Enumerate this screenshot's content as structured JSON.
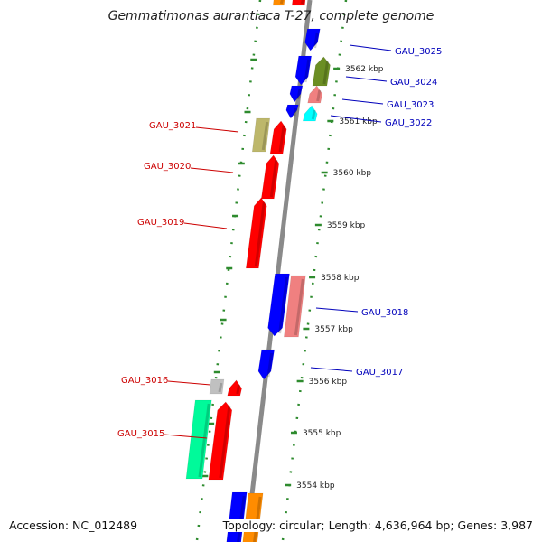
{
  "title": "Gemmatimonas aurantiaca T-27, complete genome",
  "accession_text": "Accession: NC_012489",
  "topology_text": "Topology: circular; Length: 4,636,964 bp; Genes: 3,987",
  "colors": {
    "backbone": "#8a8a8a",
    "track_dots": "#2e8b2e",
    "label_left": "#cc0000",
    "label_right": "#0000bb",
    "kbp_text": "#222222"
  },
  "kbp_ticks": [
    {
      "label": "3562 kbp"
    },
    {
      "label": "3561 kbp"
    },
    {
      "label": "3560 kbp"
    },
    {
      "label": "3559 kbp"
    },
    {
      "label": "3558 kbp"
    },
    {
      "label": "3557 kbp"
    },
    {
      "label": "3556 kbp"
    },
    {
      "label": "3555 kbp"
    },
    {
      "label": "3554 kbp"
    }
  ],
  "gene_labels": [
    {
      "name": "GAU_3025",
      "side": "right"
    },
    {
      "name": "GAU_3024",
      "side": "right"
    },
    {
      "name": "GAU_3023",
      "side": "right"
    },
    {
      "name": "GAU_3022",
      "side": "right"
    },
    {
      "name": "GAU_3021",
      "side": "left"
    },
    {
      "name": "GAU_3020",
      "side": "left"
    },
    {
      "name": "GAU_3019",
      "side": "left"
    },
    {
      "name": "GAU_3018",
      "side": "right"
    },
    {
      "name": "GAU_3017",
      "side": "right"
    },
    {
      "name": "GAU_3016",
      "side": "left"
    },
    {
      "name": "GAU_3015",
      "side": "left"
    }
  ],
  "genes": [
    {
      "color": "#ff8c00",
      "strand": "top"
    },
    {
      "color": "#ff0000",
      "strand": "top"
    },
    {
      "color": "#0000ff",
      "strand": "down"
    },
    {
      "color": "#0000ff",
      "strand": "down"
    },
    {
      "color": "#6b8e23",
      "strand": "up"
    },
    {
      "color": "#0000ff",
      "strand": "down"
    },
    {
      "color": "#f08080",
      "strand": "up"
    },
    {
      "color": "#0000ff",
      "strand": "down"
    },
    {
      "color": "#00ffff",
      "strand": "up"
    },
    {
      "color": "#bdb76b",
      "strand": "none"
    },
    {
      "color": "#ff0000",
      "strand": "up"
    },
    {
      "color": "#ff0000",
      "strand": "up"
    },
    {
      "color": "#ff0000",
      "strand": "up"
    },
    {
      "color": "#0000ff",
      "strand": "down"
    },
    {
      "color": "#f08080",
      "strand": "none"
    },
    {
      "color": "#0000ff",
      "strand": "down"
    },
    {
      "color": "#c0c0c0",
      "strand": "none"
    },
    {
      "color": "#ff0000",
      "strand": "up"
    },
    {
      "color": "#00fa9a",
      "strand": "none"
    },
    {
      "color": "#ff0000",
      "strand": "up"
    },
    {
      "color": "#0000ff",
      "strand": "none"
    },
    {
      "color": "#ff8c00",
      "strand": "none"
    }
  ]
}
